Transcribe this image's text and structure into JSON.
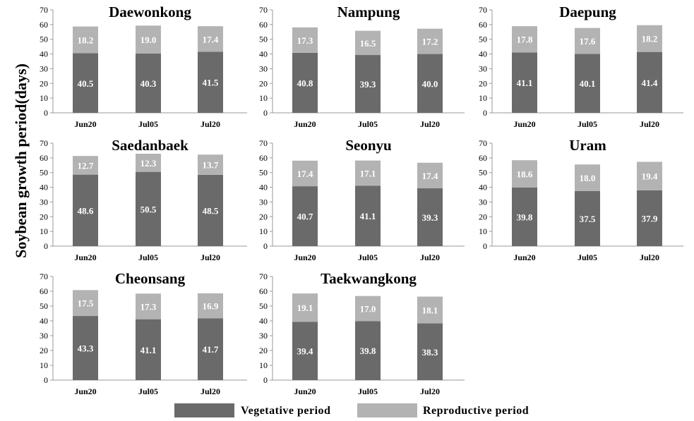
{
  "figure": {
    "y_axis_title": "Soybean growth period(days)",
    "colors": {
      "vegetative": "#6a6a6a",
      "reproductive": "#b3b3b3",
      "axis": "#999999"
    }
  },
  "legend": {
    "items": [
      {
        "name": "Vegetative period",
        "color": "#6a6a6a"
      },
      {
        "name": "Reproductive period",
        "color": "#b3b3b3"
      }
    ]
  },
  "chart_data": [
    {
      "type": "bar",
      "stacked": true,
      "title": "Daewonkong",
      "categories": [
        "Jun20",
        "Jul05",
        "Jul20"
      ],
      "ylim": [
        0,
        70
      ],
      "yticks": [
        0,
        10,
        20,
        30,
        40,
        50,
        60,
        70
      ],
      "series": [
        {
          "name": "Vegetative period",
          "values": [
            40.5,
            40.3,
            41.5
          ]
        },
        {
          "name": "Reproductive period",
          "values": [
            18.2,
            19.0,
            17.4
          ]
        }
      ]
    },
    {
      "type": "bar",
      "stacked": true,
      "title": "Nampung",
      "categories": [
        "Jun20",
        "Jul05",
        "Jul20"
      ],
      "ylim": [
        0,
        70
      ],
      "yticks": [
        0,
        10,
        20,
        30,
        40,
        50,
        60,
        70
      ],
      "series": [
        {
          "name": "Vegetative period",
          "values": [
            40.8,
            39.3,
            40.0
          ]
        },
        {
          "name": "Reproductive period",
          "values": [
            17.3,
            16.5,
            17.2
          ]
        }
      ]
    },
    {
      "type": "bar",
      "stacked": true,
      "title": "Daepung",
      "categories": [
        "Jun20",
        "Jul05",
        "Jul20"
      ],
      "ylim": [
        0,
        70
      ],
      "yticks": [
        0,
        10,
        20,
        30,
        40,
        50,
        60,
        70
      ],
      "series": [
        {
          "name": "Vegetative period",
          "values": [
            41.1,
            40.1,
            41.4
          ]
        },
        {
          "name": "Reproductive period",
          "values": [
            17.8,
            17.6,
            18.2
          ]
        }
      ]
    },
    {
      "type": "bar",
      "stacked": true,
      "title": "Saedanbaek",
      "categories": [
        "Jun20",
        "Jul05",
        "Jul20"
      ],
      "ylim": [
        0,
        70
      ],
      "yticks": [
        0,
        10,
        20,
        30,
        40,
        50,
        60,
        70
      ],
      "series": [
        {
          "name": "Vegetative period",
          "values": [
            48.6,
            50.5,
            48.5
          ]
        },
        {
          "name": "Reproductive period",
          "values": [
            12.7,
            12.3,
            13.7
          ]
        }
      ]
    },
    {
      "type": "bar",
      "stacked": true,
      "title": "Seonyu",
      "categories": [
        "Jun20",
        "Jul05",
        "Jul20"
      ],
      "ylim": [
        0,
        70
      ],
      "yticks": [
        0,
        10,
        20,
        30,
        40,
        50,
        60,
        70
      ],
      "series": [
        {
          "name": "Vegetative period",
          "values": [
            40.7,
            41.1,
            39.3
          ]
        },
        {
          "name": "Reproductive period",
          "values": [
            17.4,
            17.1,
            17.4
          ]
        }
      ]
    },
    {
      "type": "bar",
      "stacked": true,
      "title": "Uram",
      "categories": [
        "Jun20",
        "Jul05",
        "Jul20"
      ],
      "ylim": [
        0,
        70
      ],
      "yticks": [
        0,
        10,
        20,
        30,
        40,
        50,
        60,
        70
      ],
      "series": [
        {
          "name": "Vegetative period",
          "values": [
            39.8,
            37.5,
            37.9
          ]
        },
        {
          "name": "Reproductive period",
          "values": [
            18.6,
            18.0,
            19.4
          ]
        }
      ]
    },
    {
      "type": "bar",
      "stacked": true,
      "title": "Cheonsang",
      "categories": [
        "Jun20",
        "Jul05",
        "Jul20"
      ],
      "ylim": [
        0,
        70
      ],
      "yticks": [
        0,
        10,
        20,
        30,
        40,
        50,
        60,
        70
      ],
      "series": [
        {
          "name": "Vegetative period",
          "values": [
            43.3,
            41.1,
            41.7
          ]
        },
        {
          "name": "Reproductive period",
          "values": [
            17.5,
            17.3,
            16.9
          ]
        }
      ]
    },
    {
      "type": "bar",
      "stacked": true,
      "title": "Taekwangkong",
      "categories": [
        "Jun20",
        "Jul05",
        "Jul20"
      ],
      "ylim": [
        0,
        70
      ],
      "yticks": [
        0,
        10,
        20,
        30,
        40,
        50,
        60,
        70
      ],
      "series": [
        {
          "name": "Vegetative period",
          "values": [
            39.4,
            39.8,
            38.3
          ]
        },
        {
          "name": "Reproductive period",
          "values": [
            19.1,
            17.0,
            18.1
          ]
        }
      ]
    }
  ]
}
